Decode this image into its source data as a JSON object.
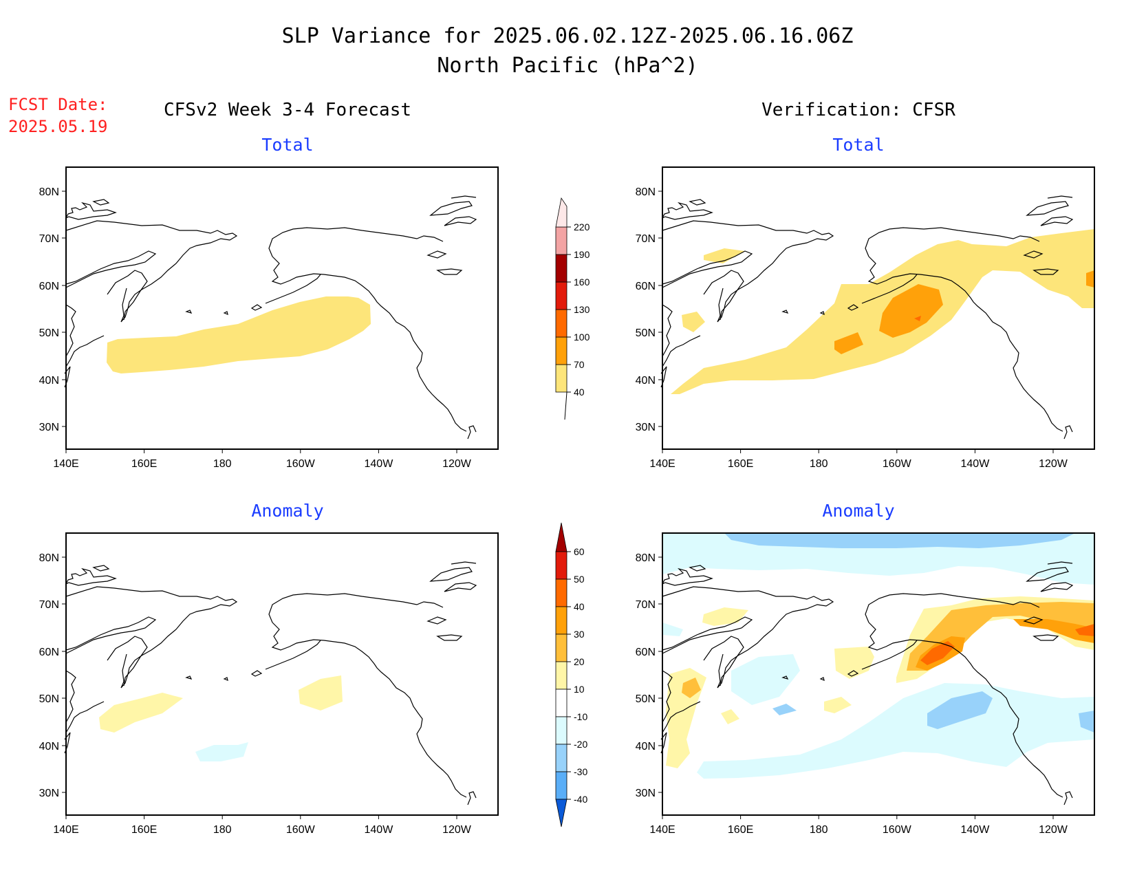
{
  "title": {
    "line1": "SLP Variance for 2025.06.02.12Z-2025.06.16.06Z",
    "line2": "North Pacific (hPa^2)"
  },
  "fcst": {
    "line1": "FCST Date:",
    "line2": "2025.05.19"
  },
  "headers": {
    "left": "CFSv2 Week 3-4 Forecast",
    "right": "Verification: CFSR"
  },
  "panels": {
    "fcst_total": "Total",
    "verif_total": "Total",
    "fcst_anom": "Anomaly",
    "verif_anom": "Anomaly"
  },
  "axes": {
    "lon_labels": [
      "140E",
      "160E",
      "180",
      "160W",
      "140W",
      "120W"
    ],
    "lat_labels": [
      "80N",
      "70N",
      "60N",
      "50N",
      "40N",
      "30N"
    ]
  },
  "colorbars": {
    "total": {
      "labels": [
        "40",
        "70",
        "100",
        "130",
        "160",
        "190",
        "220"
      ],
      "colors": [
        "#fde57a",
        "#ffa10a",
        "#ff6a00",
        "#e21b0b",
        "#a30000",
        "#f3a4a4",
        "#fde8e8"
      ]
    },
    "anomaly": {
      "labels": [
        "60",
        "50",
        "40",
        "30",
        "20",
        "10",
        "-10",
        "-20",
        "-30",
        "-40"
      ],
      "colors": {
        "pos": [
          "#fff6a8",
          "#ffbf3a",
          "#ffa10a",
          "#ff6a00",
          "#e21b0b",
          "#a30000"
        ],
        "neg": [
          "#dcfbfe",
          "#98d2fa",
          "#5aaef7",
          "#1f7fef",
          "#0b5ad8"
        ],
        "neutral": "#ffffff"
      }
    }
  }
}
